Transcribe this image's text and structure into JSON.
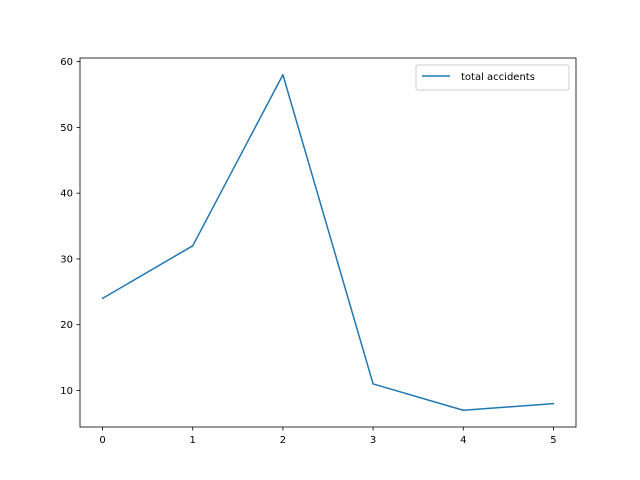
{
  "chart_data": {
    "type": "line",
    "title": "",
    "xlabel": "",
    "ylabel": "",
    "x": [
      0,
      1,
      2,
      3,
      4,
      5
    ],
    "xlim": [
      -0.25,
      5.25
    ],
    "ylim": [
      4.45,
      60.55
    ],
    "xticks": [
      0,
      1,
      2,
      3,
      4,
      5
    ],
    "yticks": [
      10,
      20,
      30,
      40,
      50,
      60
    ],
    "grid": false,
    "legend_position": "top-right",
    "series": [
      {
        "name": "total accidents",
        "color": "#1f77b4",
        "values": [
          24,
          32,
          58,
          11,
          7,
          8
        ]
      }
    ]
  }
}
